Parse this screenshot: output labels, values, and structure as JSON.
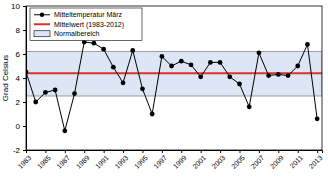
{
  "chart_data": {
    "type": "line",
    "y_label": "Grad Celsius",
    "x": [
      1983,
      1984,
      1985,
      1986,
      1987,
      1988,
      1989,
      1990,
      1991,
      1992,
      1993,
      1994,
      1995,
      1996,
      1997,
      1998,
      1999,
      2000,
      2001,
      2002,
      2003,
      2004,
      2005,
      2006,
      2007,
      2008,
      2009,
      2010,
      2011,
      2012,
      2013
    ],
    "series": [
      {
        "name": "Mitteltemperatur März",
        "color": "#000000",
        "marker": "circle",
        "values": [
          4.5,
          2.0,
          2.8,
          3.0,
          -0.4,
          2.7,
          7.0,
          6.9,
          6.4,
          4.9,
          3.6,
          6.3,
          3.1,
          1.0,
          5.8,
          5.0,
          5.4,
          5.1,
          4.1,
          5.3,
          5.3,
          4.1,
          3.5,
          1.6,
          6.1,
          4.2,
          4.3,
          4.2,
          5.0,
          6.8,
          0.6
        ]
      }
    ],
    "mean": {
      "name": "Mittelwert (1983-2012)",
      "value": 4.4,
      "color": "#e0302a"
    },
    "normal_range": {
      "name": "Normalbereich",
      "range": [
        2.5,
        6.2
      ],
      "color": "#dce6f4"
    },
    "xlim": [
      1983,
      2013.5
    ],
    "xticks": [
      1983,
      1985,
      1987,
      1989,
      1991,
      1993,
      1995,
      1997,
      1999,
      2001,
      2003,
      2005,
      2007,
      2009,
      2011,
      2013
    ],
    "ylim": [
      -2,
      10
    ],
    "yticks": [
      -2,
      0,
      2,
      4,
      6,
      8,
      10
    ],
    "legend": "upper left"
  }
}
